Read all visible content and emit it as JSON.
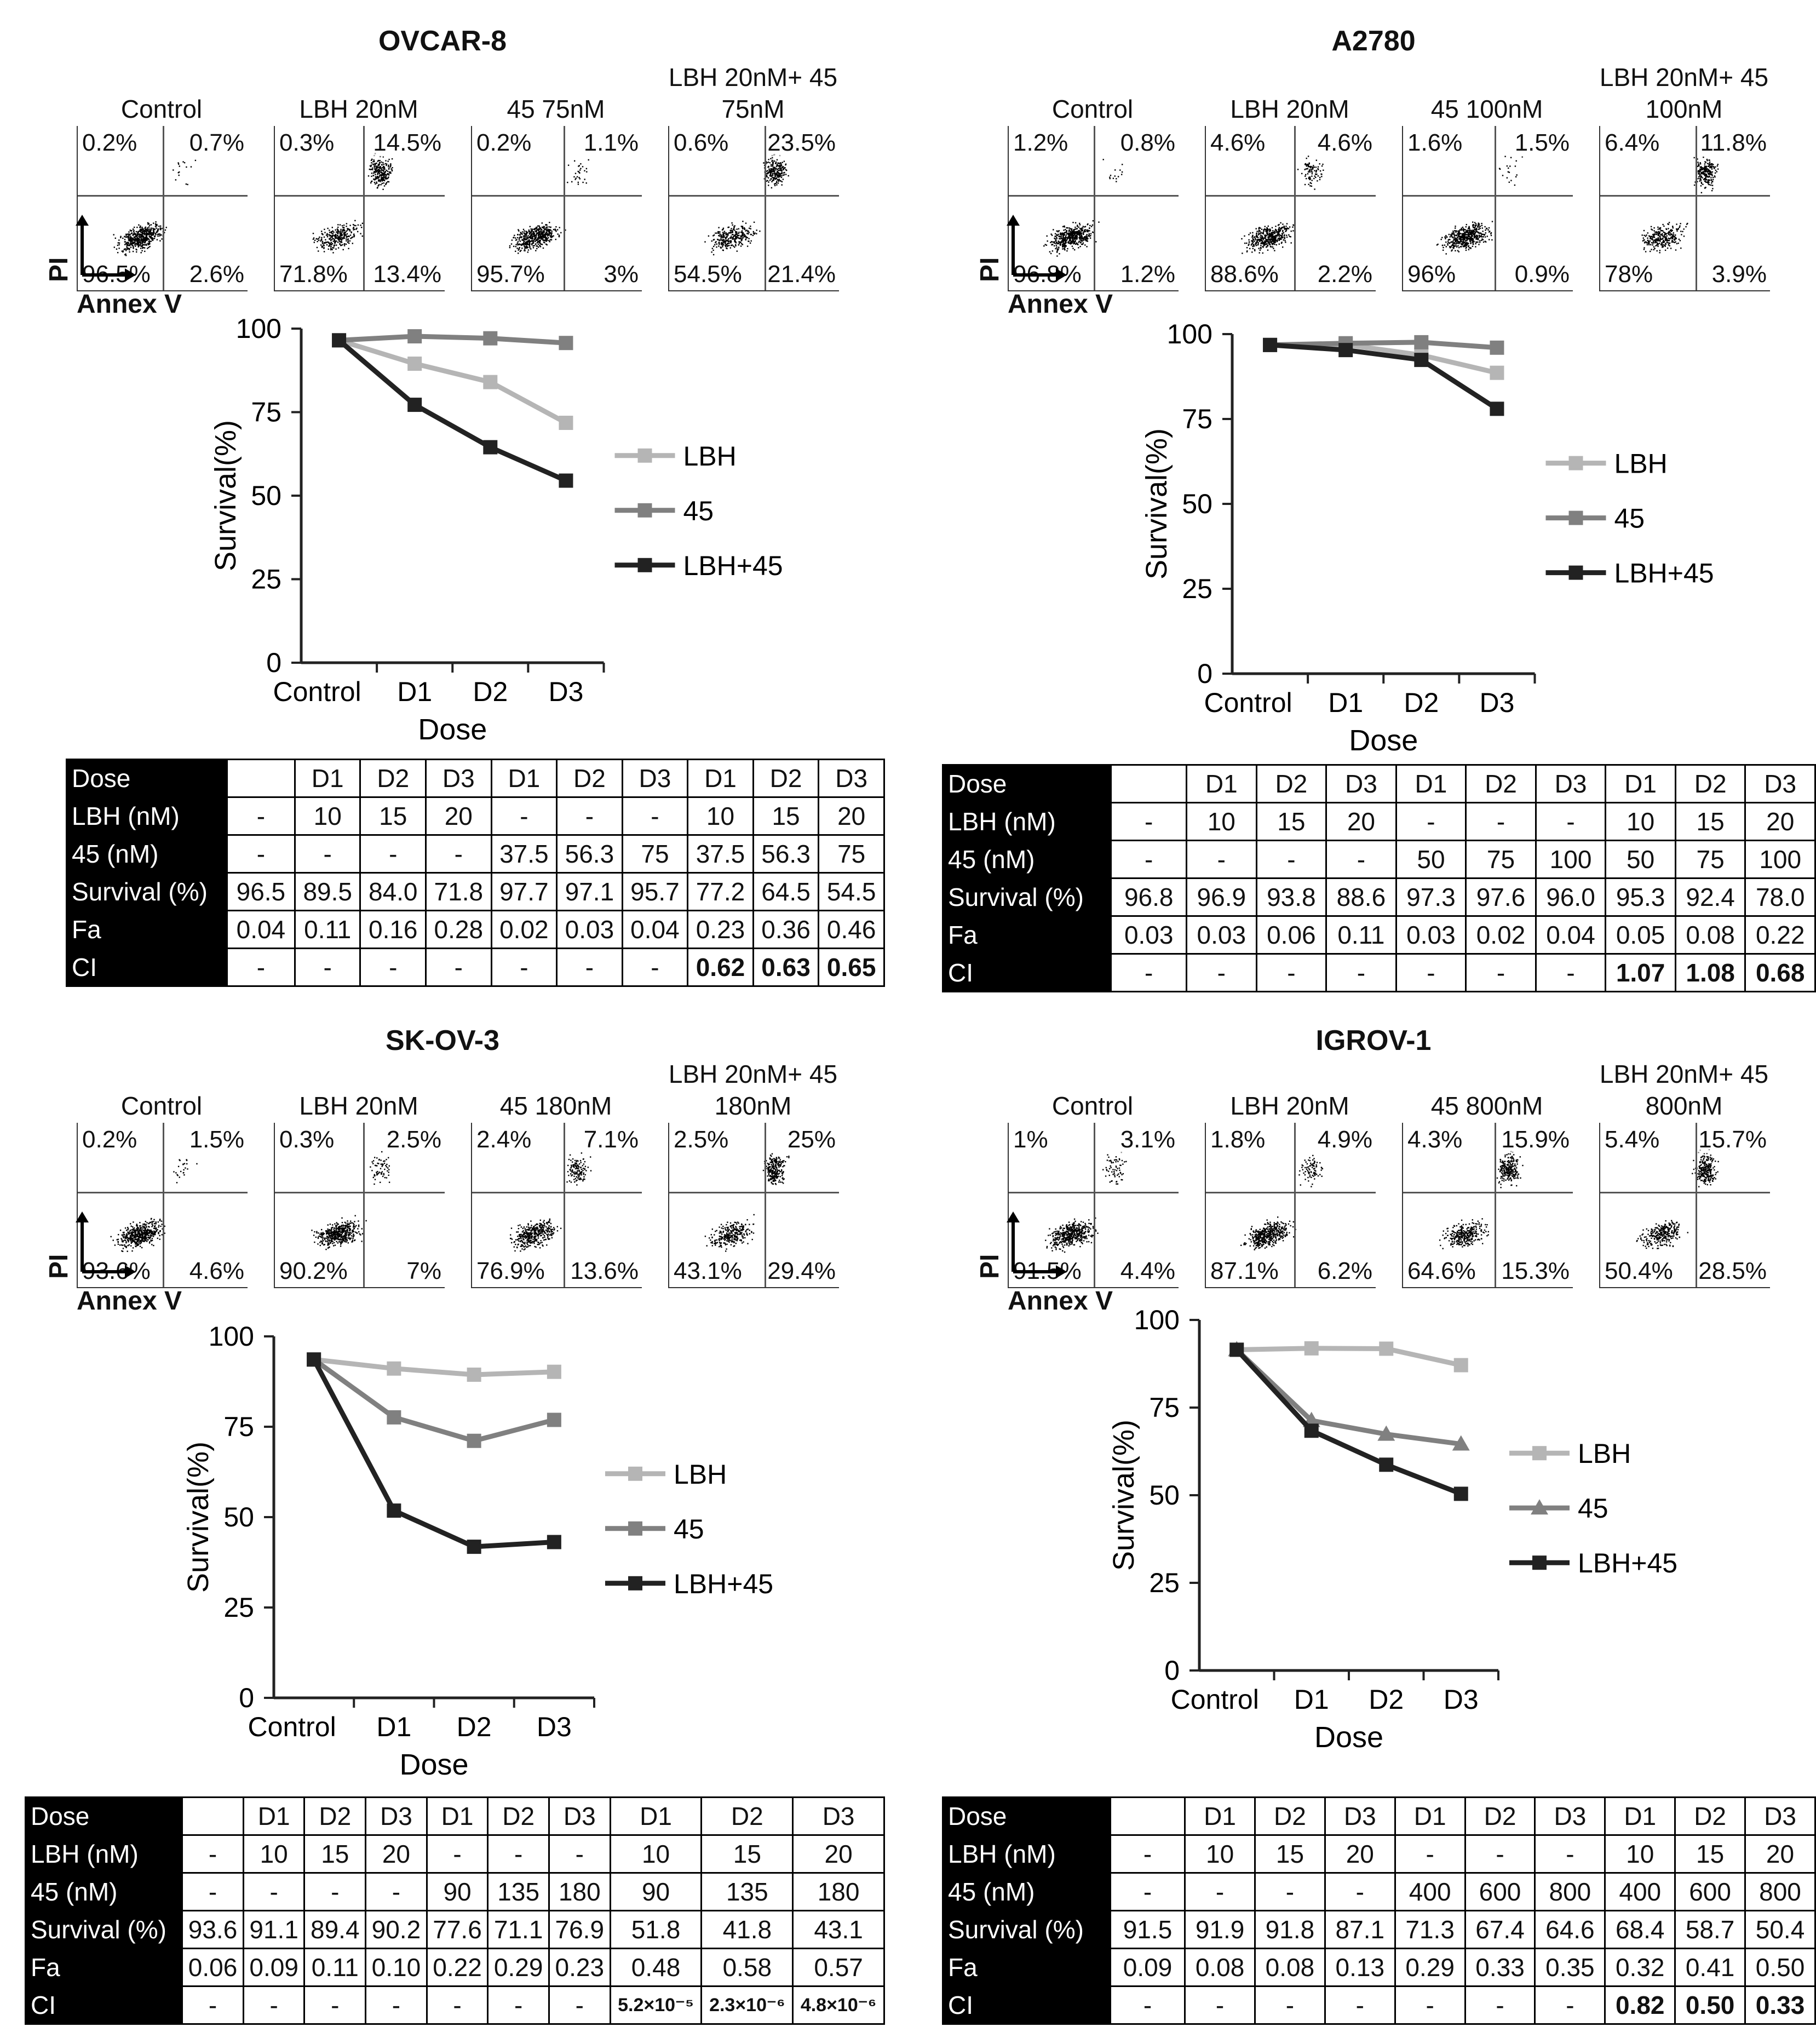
{
  "axis": {
    "pi": "PI",
    "annex": "Annex V",
    "ylabel": "Survival(%)",
    "xlabel": "Dose"
  },
  "colors": {
    "lbh": "#b5b5b5",
    "s45": "#808080",
    "combo": "#222222"
  },
  "panels": [
    {
      "title": "OVCAR-8",
      "flow": [
        {
          "title": "Control",
          "q": [
            "0.2%",
            "0.7%",
            "96.5%",
            "2.6%"
          ]
        },
        {
          "title": "LBH 20nM",
          "q": [
            "0.3%",
            "14.5%",
            "71.8%",
            "13.4%"
          ]
        },
        {
          "title": "45 75nM",
          "q": [
            "0.2%",
            "1.1%",
            "95.7%",
            "3%"
          ]
        },
        {
          "title": "LBH 20nM+ 45 75nM",
          "q": [
            "0.6%",
            "23.5%",
            "54.5%",
            "21.4%"
          ]
        }
      ],
      "chart_data": {
        "type": "line",
        "categories": [
          "Control",
          "D1",
          "D2",
          "D3"
        ],
        "series": [
          {
            "name": "LBH",
            "values": [
              96.5,
              89.5,
              84.0,
              71.8
            ],
            "marker": "square"
          },
          {
            "name": "45",
            "values": [
              96.5,
              97.7,
              97.1,
              95.7
            ],
            "marker": "square"
          },
          {
            "name": "LBH+45",
            "values": [
              96.5,
              77.2,
              64.5,
              54.5
            ],
            "marker": "square"
          }
        ],
        "ylim": [
          0,
          100
        ],
        "yticks": [
          0,
          25,
          50,
          75,
          100
        ],
        "xlabel": "Dose",
        "ylabel": "Survival(%)"
      },
      "table": [
        [
          "Dose",
          "",
          "D1",
          "D2",
          "D3",
          "D1",
          "D2",
          "D3",
          "D1",
          "D2",
          "D3"
        ],
        [
          "LBH (nM)",
          "-",
          "10",
          "15",
          "20",
          "-",
          "-",
          "-",
          "10",
          "15",
          "20"
        ],
        [
          "45 (nM)",
          "-",
          "-",
          "-",
          "-",
          "37.5",
          "56.3",
          "75",
          "37.5",
          "56.3",
          "75"
        ],
        [
          "Survival (%)",
          "96.5",
          "89.5",
          "84.0",
          "71.8",
          "97.7",
          "97.1",
          "95.7",
          "77.2",
          "64.5",
          "54.5"
        ],
        [
          "Fa",
          "0.04",
          "0.11",
          "0.16",
          "0.28",
          "0.02",
          "0.03",
          "0.04",
          "0.23",
          "0.36",
          "0.46"
        ],
        [
          "CI",
          "-",
          "-",
          "-",
          "-",
          "-",
          "-",
          "-",
          "0.62",
          "0.63",
          "0.65"
        ]
      ]
    },
    {
      "title": "A2780",
      "flow": [
        {
          "title": "Control",
          "q": [
            "1.2%",
            "0.8%",
            "96.8%",
            "1.2%"
          ]
        },
        {
          "title": "LBH 20nM",
          "q": [
            "4.6%",
            "4.6%",
            "88.6%",
            "2.2%"
          ]
        },
        {
          "title": "45 100nM",
          "q": [
            "1.6%",
            "1.5%",
            "96%",
            "0.9%"
          ]
        },
        {
          "title": "LBH 20nM+ 45 100nM",
          "q": [
            "6.4%",
            "11.8%",
            "78%",
            "3.9%"
          ]
        }
      ],
      "chart_data": {
        "type": "line",
        "categories": [
          "Control",
          "D1",
          "D2",
          "D3"
        ],
        "series": [
          {
            "name": "LBH",
            "values": [
              96.8,
              96.9,
              93.8,
              88.6
            ],
            "marker": "square"
          },
          {
            "name": "45",
            "values": [
              96.8,
              97.3,
              97.6,
              96.0
            ],
            "marker": "square"
          },
          {
            "name": "LBH+45",
            "values": [
              96.8,
              95.3,
              92.4,
              78.0
            ],
            "marker": "square"
          }
        ],
        "ylim": [
          0,
          100
        ],
        "yticks": [
          0,
          25,
          50,
          75,
          100
        ],
        "xlabel": "Dose",
        "ylabel": "Survival(%)"
      },
      "table": [
        [
          "Dose",
          "",
          "D1",
          "D2",
          "D3",
          "D1",
          "D2",
          "D3",
          "D1",
          "D2",
          "D3"
        ],
        [
          "LBH (nM)",
          "-",
          "10",
          "15",
          "20",
          "-",
          "-",
          "-",
          "10",
          "15",
          "20"
        ],
        [
          "45 (nM)",
          "-",
          "-",
          "-",
          "-",
          "50",
          "75",
          "100",
          "50",
          "75",
          "100"
        ],
        [
          "Survival (%)",
          "96.8",
          "96.9",
          "93.8",
          "88.6",
          "97.3",
          "97.6",
          "96.0",
          "95.3",
          "92.4",
          "78.0"
        ],
        [
          "Fa",
          "0.03",
          "0.03",
          "0.06",
          "0.11",
          "0.03",
          "0.02",
          "0.04",
          "0.05",
          "0.08",
          "0.22"
        ],
        [
          "CI",
          "-",
          "-",
          "-",
          "-",
          "-",
          "-",
          "-",
          "1.07",
          "1.08",
          "0.68"
        ]
      ]
    },
    {
      "title": "SK-OV-3",
      "flow": [
        {
          "title": "Control",
          "q": [
            "0.2%",
            "1.5%",
            "93.6%",
            "4.6%"
          ]
        },
        {
          "title": "LBH 20nM",
          "q": [
            "0.3%",
            "2.5%",
            "90.2%",
            "7%"
          ]
        },
        {
          "title": "45 180nM",
          "q": [
            "2.4%",
            "7.1%",
            "76.9%",
            "13.6%"
          ]
        },
        {
          "title": "LBH 20nM+ 45 180nM",
          "q": [
            "2.5%",
            "25%",
            "43.1%",
            "29.4%"
          ]
        }
      ],
      "chart_data": {
        "type": "line",
        "categories": [
          "Control",
          "D1",
          "D2",
          "D3"
        ],
        "series": [
          {
            "name": "LBH",
            "values": [
              93.6,
              91.1,
              89.4,
              90.2
            ],
            "marker": "square"
          },
          {
            "name": "45",
            "values": [
              93.6,
              77.6,
              71.1,
              76.9
            ],
            "marker": "square"
          },
          {
            "name": "LBH+45",
            "values": [
              93.6,
              51.8,
              41.8,
              43.1
            ],
            "marker": "square"
          }
        ],
        "ylim": [
          0,
          100
        ],
        "yticks": [
          0,
          25,
          50,
          75,
          100
        ],
        "xlabel": "Dose",
        "ylabel": "Survival(%)"
      },
      "table": [
        [
          "Dose",
          "",
          "D1",
          "D2",
          "D3",
          "D1",
          "D2",
          "D3",
          "D1",
          "D2",
          "D3"
        ],
        [
          "LBH (nM)",
          "-",
          "10",
          "15",
          "20",
          "-",
          "-",
          "-",
          "10",
          "15",
          "20"
        ],
        [
          "45 (nM)",
          "-",
          "-",
          "-",
          "-",
          "90",
          "135",
          "180",
          "90",
          "135",
          "180"
        ],
        [
          "Survival (%)",
          "93.6",
          "91.1",
          "89.4",
          "90.2",
          "77.6",
          "71.1",
          "76.9",
          "51.8",
          "41.8",
          "43.1"
        ],
        [
          "Fa",
          "0.06",
          "0.09",
          "0.11",
          "0.10",
          "0.22",
          "0.29",
          "0.23",
          "0.48",
          "0.58",
          "0.57"
        ],
        [
          "CI",
          "-",
          "-",
          "-",
          "-",
          "-",
          "-",
          "-",
          "5.2×10⁻⁵",
          "2.3×10⁻⁶",
          "4.8×10⁻⁶"
        ]
      ]
    },
    {
      "title": "IGROV-1",
      "flow": [
        {
          "title": "Control",
          "q": [
            "1%",
            "3.1%",
            "91.5%",
            "4.4%"
          ]
        },
        {
          "title": "LBH 20nM",
          "q": [
            "1.8%",
            "4.9%",
            "87.1%",
            "6.2%"
          ]
        },
        {
          "title": "45 800nM",
          "q": [
            "4.3%",
            "15.9%",
            "64.6%",
            "15.3%"
          ]
        },
        {
          "title": "LBH 20nM+ 45 800nM",
          "q": [
            "5.4%",
            "15.7%",
            "50.4%",
            "28.5%"
          ]
        }
      ],
      "chart_data": {
        "type": "line",
        "categories": [
          "Control",
          "D1",
          "D2",
          "D3"
        ],
        "series": [
          {
            "name": "LBH",
            "values": [
              91.5,
              91.9,
              91.8,
              87.1
            ],
            "marker": "square"
          },
          {
            "name": "45",
            "values": [
              91.5,
              71.3,
              67.4,
              64.6
            ],
            "marker": "triangle"
          },
          {
            "name": "LBH+45",
            "values": [
              91.5,
              68.4,
              58.7,
              50.4
            ],
            "marker": "square"
          }
        ],
        "ylim": [
          0,
          100
        ],
        "yticks": [
          0,
          25,
          50,
          75,
          100
        ],
        "xlabel": "Dose",
        "ylabel": "Survival(%)"
      },
      "table": [
        [
          "Dose",
          "",
          "D1",
          "D2",
          "D3",
          "D1",
          "D2",
          "D3",
          "D1",
          "D2",
          "D3"
        ],
        [
          "LBH (nM)",
          "-",
          "10",
          "15",
          "20",
          "-",
          "-",
          "-",
          "10",
          "15",
          "20"
        ],
        [
          "45 (nM)",
          "-",
          "-",
          "-",
          "-",
          "400",
          "600",
          "800",
          "400",
          "600",
          "800"
        ],
        [
          "Survival (%)",
          "91.5",
          "91.9",
          "91.8",
          "87.1",
          "71.3",
          "67.4",
          "64.6",
          "68.4",
          "58.7",
          "50.4"
        ],
        [
          "Fa",
          "0.09",
          "0.08",
          "0.08",
          "0.13",
          "0.29",
          "0.33",
          "0.35",
          "0.32",
          "0.41",
          "0.50"
        ],
        [
          "CI",
          "-",
          "-",
          "-",
          "-",
          "-",
          "-",
          "-",
          "0.82",
          "0.50",
          "0.33"
        ]
      ]
    }
  ]
}
